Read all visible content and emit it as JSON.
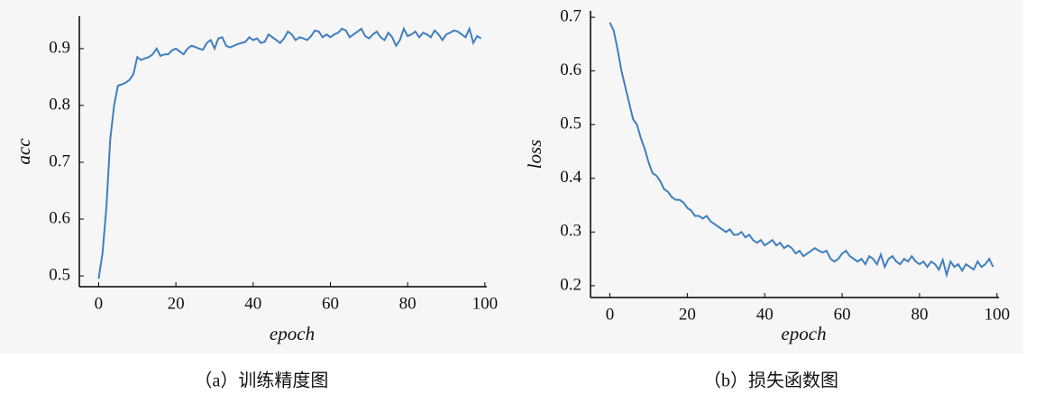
{
  "chart_data": [
    {
      "type": "line",
      "caption": "（a）训练精度图",
      "xlabel": "epoch",
      "ylabel": "acc",
      "x": [
        0,
        1,
        2,
        3,
        4,
        5,
        6,
        7,
        8,
        9,
        10,
        11,
        12,
        13,
        14,
        15,
        16,
        17,
        18,
        19,
        20,
        21,
        22,
        23,
        24,
        25,
        26,
        27,
        28,
        29,
        30,
        31,
        32,
        33,
        34,
        35,
        36,
        37,
        38,
        39,
        40,
        41,
        42,
        43,
        44,
        45,
        46,
        47,
        48,
        49,
        50,
        51,
        52,
        53,
        54,
        55,
        56,
        57,
        58,
        59,
        60,
        61,
        62,
        63,
        64,
        65,
        66,
        67,
        68,
        69,
        70,
        71,
        72,
        73,
        74,
        75,
        76,
        77,
        78,
        79,
        80,
        81,
        82,
        83,
        84,
        85,
        86,
        87,
        88,
        89,
        90,
        91,
        92,
        93,
        94,
        95,
        96,
        97,
        98,
        99
      ],
      "series": [
        {
          "color": "#3f7fbf",
          "values": [
            0.495,
            0.54,
            0.62,
            0.74,
            0.8,
            0.835,
            0.837,
            0.84,
            0.845,
            0.855,
            0.885,
            0.88,
            0.883,
            0.885,
            0.89,
            0.9,
            0.887,
            0.89,
            0.89,
            0.897,
            0.9,
            0.895,
            0.89,
            0.9,
            0.905,
            0.903,
            0.9,
            0.898,
            0.91,
            0.915,
            0.9,
            0.918,
            0.92,
            0.905,
            0.902,
            0.905,
            0.908,
            0.91,
            0.912,
            0.92,
            0.915,
            0.918,
            0.91,
            0.912,
            0.925,
            0.92,
            0.915,
            0.91,
            0.918,
            0.93,
            0.925,
            0.915,
            0.92,
            0.918,
            0.915,
            0.922,
            0.932,
            0.93,
            0.92,
            0.925,
            0.92,
            0.925,
            0.928,
            0.935,
            0.932,
            0.92,
            0.925,
            0.93,
            0.935,
            0.922,
            0.918,
            0.925,
            0.93,
            0.92,
            0.915,
            0.928,
            0.92,
            0.905,
            0.915,
            0.935,
            0.922,
            0.925,
            0.93,
            0.92,
            0.928,
            0.925,
            0.92,
            0.932,
            0.925,
            0.915,
            0.925,
            0.928,
            0.932,
            0.93,
            0.925,
            0.92,
            0.935,
            0.91,
            0.922,
            0.918
          ]
        }
      ],
      "xlim": [
        -5,
        100.5
      ],
      "xticks": [
        0,
        20,
        40,
        60,
        80,
        100
      ],
      "ylim": [
        0.481,
        0.957
      ],
      "yticks": [
        0.5,
        0.6,
        0.7,
        0.8,
        0.9
      ]
    },
    {
      "type": "line",
      "caption": "（b）损失函数图",
      "xlabel": "epoch",
      "ylabel": "loss",
      "x": [
        0,
        1,
        2,
        3,
        4,
        5,
        6,
        7,
        8,
        9,
        10,
        11,
        12,
        13,
        14,
        15,
        16,
        17,
        18,
        19,
        20,
        21,
        22,
        23,
        24,
        25,
        26,
        27,
        28,
        29,
        30,
        31,
        32,
        33,
        34,
        35,
        36,
        37,
        38,
        39,
        40,
        41,
        42,
        43,
        44,
        45,
        46,
        47,
        48,
        49,
        50,
        51,
        52,
        53,
        54,
        55,
        56,
        57,
        58,
        59,
        60,
        61,
        62,
        63,
        64,
        65,
        66,
        67,
        68,
        69,
        70,
        71,
        72,
        73,
        74,
        75,
        76,
        77,
        78,
        79,
        80,
        81,
        82,
        83,
        84,
        85,
        86,
        87,
        88,
        89,
        90,
        91,
        92,
        93,
        94,
        95,
        96,
        97,
        98,
        99
      ],
      "series": [
        {
          "color": "#3f7fbf",
          "values": [
            0.69,
            0.675,
            0.64,
            0.6,
            0.57,
            0.54,
            0.51,
            0.5,
            0.475,
            0.455,
            0.43,
            0.41,
            0.405,
            0.395,
            0.38,
            0.375,
            0.365,
            0.36,
            0.36,
            0.355,
            0.345,
            0.34,
            0.33,
            0.33,
            0.325,
            0.33,
            0.32,
            0.315,
            0.31,
            0.305,
            0.3,
            0.305,
            0.295,
            0.295,
            0.3,
            0.29,
            0.295,
            0.285,
            0.28,
            0.285,
            0.275,
            0.28,
            0.285,
            0.275,
            0.28,
            0.27,
            0.275,
            0.27,
            0.26,
            0.265,
            0.255,
            0.26,
            0.265,
            0.27,
            0.265,
            0.262,
            0.265,
            0.25,
            0.245,
            0.25,
            0.26,
            0.265,
            0.255,
            0.25,
            0.245,
            0.25,
            0.24,
            0.255,
            0.25,
            0.24,
            0.258,
            0.235,
            0.25,
            0.255,
            0.245,
            0.24,
            0.25,
            0.245,
            0.255,
            0.245,
            0.24,
            0.245,
            0.235,
            0.245,
            0.24,
            0.23,
            0.248,
            0.22,
            0.245,
            0.235,
            0.24,
            0.228,
            0.24,
            0.235,
            0.23,
            0.245,
            0.235,
            0.24,
            0.25,
            0.235
          ]
        }
      ],
      "xlim": [
        -5,
        100.5
      ],
      "xticks": [
        0,
        20,
        40,
        60,
        80,
        100
      ],
      "ylim": [
        0.178,
        0.712
      ],
      "yticks": [
        0.2,
        0.3,
        0.4,
        0.5,
        0.6,
        0.7
      ]
    }
  ]
}
